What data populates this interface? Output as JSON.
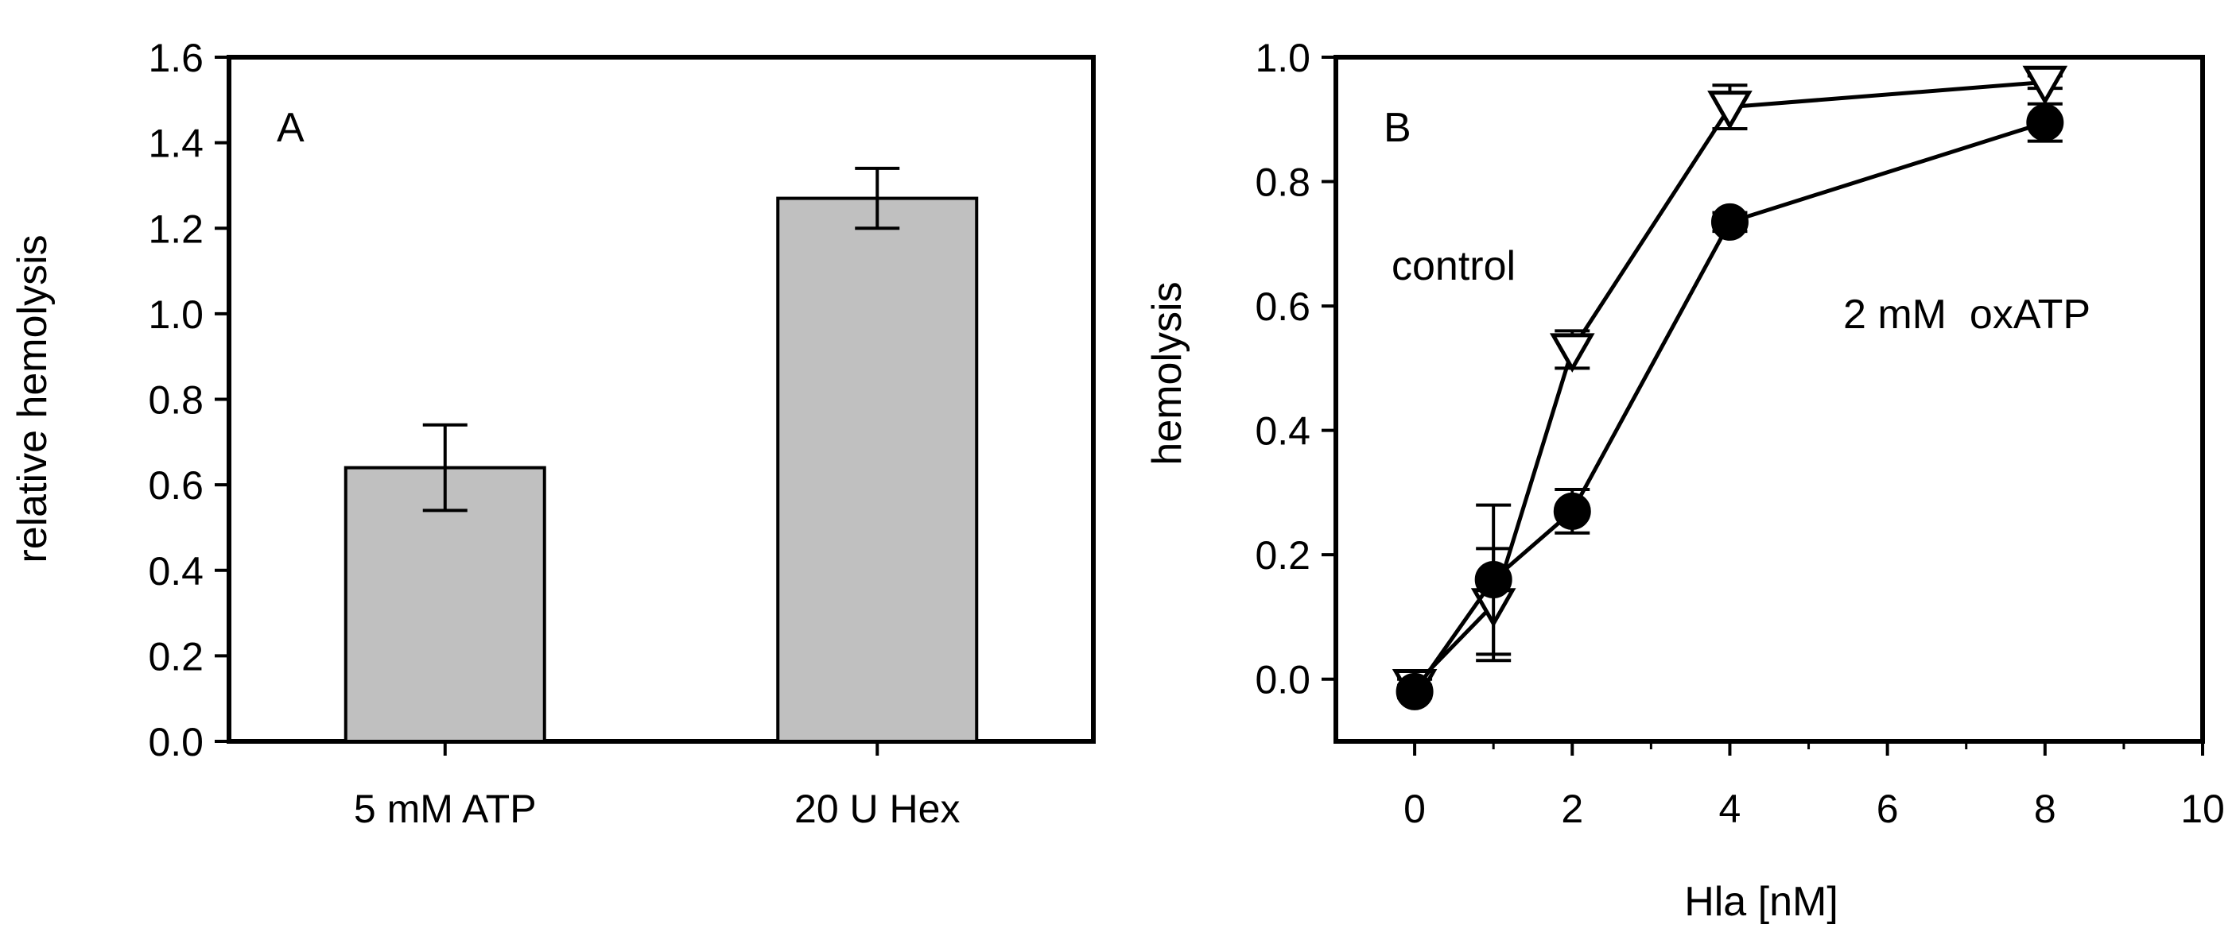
{
  "chart_data": [
    {
      "panel": "A",
      "type": "bar",
      "title": "",
      "panel_label": "A",
      "xlabel": "",
      "ylabel": "relative hemolysis",
      "ylim": [
        0,
        1.6
      ],
      "yticks": [
        "0.0",
        "0.2",
        "0.4",
        "0.6",
        "0.8",
        "1.0",
        "1.2",
        "1.4",
        "1.6"
      ],
      "categories": [
        "5 mM ATP",
        "20 U Hex"
      ],
      "values": [
        0.64,
        1.27
      ],
      "errors": [
        0.1,
        0.07
      ],
      "bar_color": "#c0c0c0",
      "grid": false
    },
    {
      "panel": "B",
      "type": "line",
      "title": "",
      "panel_label": "B",
      "xlabel": "Hla [nM]",
      "ylabel": "hemolysis",
      "xlim": [
        -1,
        10
      ],
      "ylim": [
        -0.1,
        1.0
      ],
      "xticks": [
        "0",
        "2",
        "4",
        "6",
        "8",
        "10"
      ],
      "yticks": [
        "0.0",
        "0.2",
        "0.4",
        "0.6",
        "0.8",
        "1.0"
      ],
      "series": [
        {
          "name": "control",
          "marker": "open-triangle-down",
          "x": [
            0,
            1,
            2,
            4,
            8
          ],
          "values": [
            -0.01,
            0.12,
            0.53,
            0.92,
            0.96
          ],
          "errors": [
            0.01,
            0.09,
            0.03,
            0.035,
            0.01
          ]
        },
        {
          "name": "2 mM  oxATP",
          "marker": "filled-circle",
          "x": [
            0,
            1,
            2,
            4,
            8
          ],
          "values": [
            -0.02,
            0.16,
            0.27,
            0.735,
            0.895
          ],
          "errors": [
            0.01,
            0.12,
            0.035,
            0.015,
            0.03
          ]
        }
      ],
      "annotations": [
        "control",
        "2 mM  oxATP"
      ],
      "grid": false
    }
  ]
}
